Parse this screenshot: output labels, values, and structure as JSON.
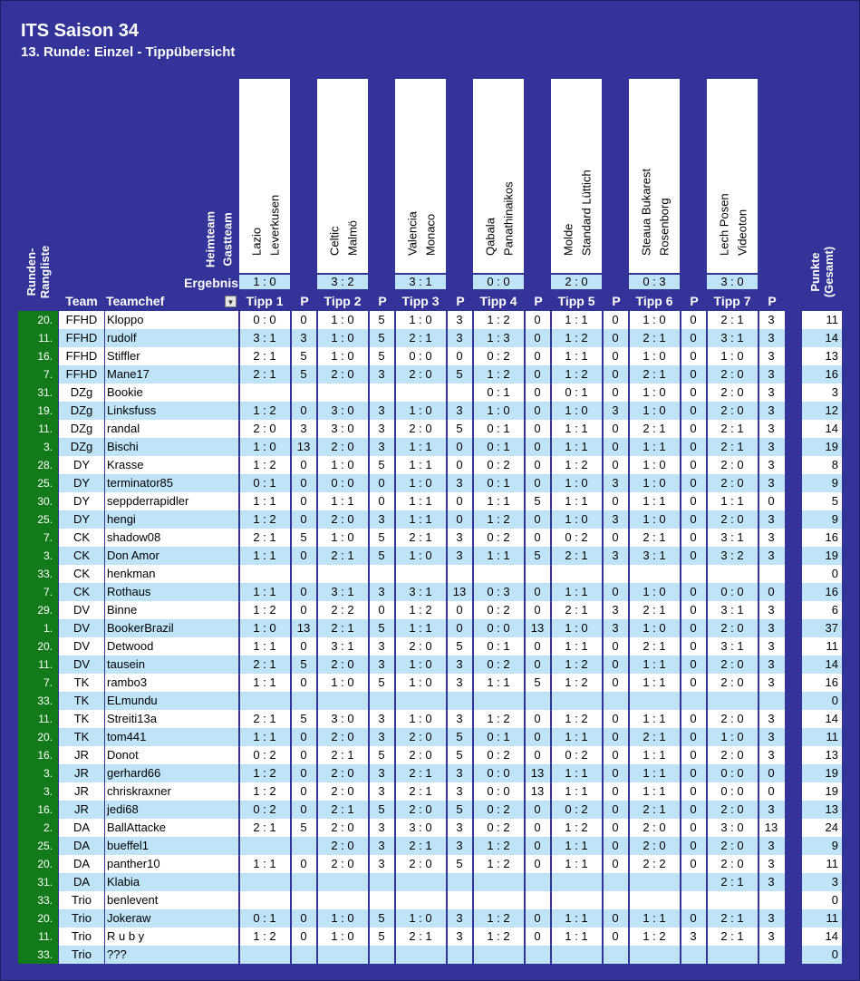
{
  "title": "ITS Saison 34",
  "subtitle": "13. Runde: Einzel - Tippübersicht",
  "labels": {
    "heimteam": "Heimteam",
    "gastteam": "Gastteam",
    "ergebnis": "Ergebnis",
    "runden_rangliste": "Runden-\nRangliste",
    "team": "Team",
    "teamchef": "Teamchef",
    "p": "P",
    "punkte": "Punkte\n(Gesamt)",
    "filter_icon": "▼"
  },
  "matches": [
    {
      "home": "Lazio",
      "away": "Leverkusen",
      "result": "1 : 0",
      "tipp_label": "Tipp 1"
    },
    {
      "home": "Celtic",
      "away": "Malmö",
      "result": "3 : 2",
      "tipp_label": "Tipp 2"
    },
    {
      "home": "Valencia",
      "away": "Monaco",
      "result": "3 : 1",
      "tipp_label": "Tipp 3"
    },
    {
      "home": "Qabala",
      "away": "Panathinaikos",
      "result": "0 : 0",
      "tipp_label": "Tipp 4"
    },
    {
      "home": "Molde",
      "away": "Standard Lüttich",
      "result": "2 : 0",
      "tipp_label": "Tipp 5"
    },
    {
      "home": "Steaua Bukarest",
      "away": "Rosenborg",
      "result": "0 : 3",
      "tipp_label": "Tipp 6"
    },
    {
      "home": "Lech Posen",
      "away": "Videoton",
      "result": "3 : 0",
      "tipp_label": "Tipp 7"
    }
  ],
  "rows": [
    {
      "rank": "20.",
      "team": "FFHD",
      "chef": "Kloppo",
      "tipps": [
        [
          "0 : 0",
          "0"
        ],
        [
          "1 : 0",
          "5"
        ],
        [
          "1 : 0",
          "3"
        ],
        [
          "1 : 2",
          "0"
        ],
        [
          "1 : 1",
          "0"
        ],
        [
          "1 : 0",
          "0"
        ],
        [
          "2 : 1",
          "3"
        ]
      ],
      "total": "11"
    },
    {
      "rank": "11.",
      "team": "FFHD",
      "chef": "rudolf",
      "tipps": [
        [
          "3 : 1",
          "3"
        ],
        [
          "1 : 0",
          "5"
        ],
        [
          "2 : 1",
          "3"
        ],
        [
          "1 : 3",
          "0"
        ],
        [
          "1 : 2",
          "0"
        ],
        [
          "2 : 1",
          "0"
        ],
        [
          "3 : 1",
          "3"
        ]
      ],
      "total": "14"
    },
    {
      "rank": "16.",
      "team": "FFHD",
      "chef": "Stiffler",
      "tipps": [
        [
          "2 : 1",
          "5"
        ],
        [
          "1 : 0",
          "5"
        ],
        [
          "0 : 0",
          "0"
        ],
        [
          "0 : 2",
          "0"
        ],
        [
          "1 : 1",
          "0"
        ],
        [
          "1 : 0",
          "0"
        ],
        [
          "1 : 0",
          "3"
        ]
      ],
      "total": "13"
    },
    {
      "rank": "7.",
      "team": "FFHD",
      "chef": "Mane17",
      "tipps": [
        [
          "2 : 1",
          "5"
        ],
        [
          "2 : 0",
          "3"
        ],
        [
          "2 : 0",
          "5"
        ],
        [
          "1 : 2",
          "0"
        ],
        [
          "1 : 2",
          "0"
        ],
        [
          "2 : 1",
          "0"
        ],
        [
          "2 : 0",
          "3"
        ]
      ],
      "total": "16"
    },
    {
      "rank": "31.",
      "team": "DZg",
      "chef": "Bookie",
      "tipps": [
        [
          "",
          ""
        ],
        [
          "",
          ""
        ],
        [
          "",
          ""
        ],
        [
          "0 : 1",
          "0"
        ],
        [
          "0 : 1",
          "0"
        ],
        [
          "1 : 0",
          "0"
        ],
        [
          "2 : 0",
          "3"
        ]
      ],
      "total": "3"
    },
    {
      "rank": "19.",
      "team": "DZg",
      "chef": "Linksfuss",
      "tipps": [
        [
          "1 : 2",
          "0"
        ],
        [
          "3 : 0",
          "3"
        ],
        [
          "1 : 0",
          "3"
        ],
        [
          "1 : 0",
          "0"
        ],
        [
          "1 : 0",
          "3"
        ],
        [
          "1 : 0",
          "0"
        ],
        [
          "2 : 0",
          "3"
        ]
      ],
      "total": "12"
    },
    {
      "rank": "11.",
      "team": "DZg",
      "chef": "randal",
      "tipps": [
        [
          "2 : 0",
          "3"
        ],
        [
          "3 : 0",
          "3"
        ],
        [
          "2 : 0",
          "5"
        ],
        [
          "0 : 1",
          "0"
        ],
        [
          "1 : 1",
          "0"
        ],
        [
          "2 : 1",
          "0"
        ],
        [
          "2 : 1",
          "3"
        ]
      ],
      "total": "14"
    },
    {
      "rank": "3.",
      "team": "DZg",
      "chef": "Bischi",
      "tipps": [
        [
          "1 : 0",
          "13"
        ],
        [
          "2 : 0",
          "3"
        ],
        [
          "1 : 1",
          "0"
        ],
        [
          "0 : 1",
          "0"
        ],
        [
          "1 : 1",
          "0"
        ],
        [
          "1 : 1",
          "0"
        ],
        [
          "2 : 1",
          "3"
        ]
      ],
      "total": "19"
    },
    {
      "rank": "28.",
      "team": "DY",
      "chef": "Krasse",
      "tipps": [
        [
          "1 : 2",
          "0"
        ],
        [
          "1 : 0",
          "5"
        ],
        [
          "1 : 1",
          "0"
        ],
        [
          "0 : 2",
          "0"
        ],
        [
          "1 : 2",
          "0"
        ],
        [
          "1 : 0",
          "0"
        ],
        [
          "2 : 0",
          "3"
        ]
      ],
      "total": "8"
    },
    {
      "rank": "25.",
      "team": "DY",
      "chef": "terminator85",
      "tipps": [
        [
          "0 : 1",
          "0"
        ],
        [
          "0 : 0",
          "0"
        ],
        [
          "1 : 0",
          "3"
        ],
        [
          "0 : 1",
          "0"
        ],
        [
          "1 : 0",
          "3"
        ],
        [
          "1 : 0",
          "0"
        ],
        [
          "2 : 0",
          "3"
        ]
      ],
      "total": "9"
    },
    {
      "rank": "30.",
      "team": "DY",
      "chef": "seppderrapidler",
      "tipps": [
        [
          "1 : 1",
          "0"
        ],
        [
          "1 : 1",
          "0"
        ],
        [
          "1 : 1",
          "0"
        ],
        [
          "1 : 1",
          "5"
        ],
        [
          "1 : 1",
          "0"
        ],
        [
          "1 : 1",
          "0"
        ],
        [
          "1 : 1",
          "0"
        ]
      ],
      "total": "5"
    },
    {
      "rank": "25.",
      "team": "DY",
      "chef": "hengi",
      "tipps": [
        [
          "1 : 2",
          "0"
        ],
        [
          "2 : 0",
          "3"
        ],
        [
          "1 : 1",
          "0"
        ],
        [
          "1 : 2",
          "0"
        ],
        [
          "1 : 0",
          "3"
        ],
        [
          "1 : 0",
          "0"
        ],
        [
          "2 : 0",
          "3"
        ]
      ],
      "total": "9"
    },
    {
      "rank": "7.",
      "team": "CK",
      "chef": "shadow08",
      "tipps": [
        [
          "2 : 1",
          "5"
        ],
        [
          "1 : 0",
          "5"
        ],
        [
          "2 : 1",
          "3"
        ],
        [
          "0 : 2",
          "0"
        ],
        [
          "0 : 2",
          "0"
        ],
        [
          "2 : 1",
          "0"
        ],
        [
          "3 : 1",
          "3"
        ]
      ],
      "total": "16"
    },
    {
      "rank": "3.",
      "team": "CK",
      "chef": "Don Amor",
      "tipps": [
        [
          "1 : 1",
          "0"
        ],
        [
          "2 : 1",
          "5"
        ],
        [
          "1 : 0",
          "3"
        ],
        [
          "1 : 1",
          "5"
        ],
        [
          "2 : 1",
          "3"
        ],
        [
          "3 : 1",
          "0"
        ],
        [
          "3 : 2",
          "3"
        ]
      ],
      "total": "19"
    },
    {
      "rank": "33.",
      "team": "CK",
      "chef": "henkman",
      "tipps": [
        [
          "",
          ""
        ],
        [
          "",
          ""
        ],
        [
          "",
          ""
        ],
        [
          "",
          ""
        ],
        [
          "",
          ""
        ],
        [
          "",
          ""
        ],
        [
          "",
          ""
        ]
      ],
      "total": "0"
    },
    {
      "rank": "7.",
      "team": "CK",
      "chef": "Rothaus",
      "tipps": [
        [
          "1 : 1",
          "0"
        ],
        [
          "3 : 1",
          "3"
        ],
        [
          "3 : 1",
          "13"
        ],
        [
          "0 : 3",
          "0"
        ],
        [
          "1 : 1",
          "0"
        ],
        [
          "1 : 0",
          "0"
        ],
        [
          "0 : 0",
          "0"
        ]
      ],
      "total": "16"
    },
    {
      "rank": "29.",
      "team": "DV",
      "chef": "Binne",
      "tipps": [
        [
          "1 : 2",
          "0"
        ],
        [
          "2 : 2",
          "0"
        ],
        [
          "1 : 2",
          "0"
        ],
        [
          "0 : 2",
          "0"
        ],
        [
          "2 : 1",
          "3"
        ],
        [
          "2 : 1",
          "0"
        ],
        [
          "3 : 1",
          "3"
        ]
      ],
      "total": "6"
    },
    {
      "rank": "1.",
      "team": "DV",
      "chef": "BookerBrazil",
      "tipps": [
        [
          "1 : 0",
          "13"
        ],
        [
          "2 : 1",
          "5"
        ],
        [
          "1 : 1",
          "0"
        ],
        [
          "0 : 0",
          "13"
        ],
        [
          "1 : 0",
          "3"
        ],
        [
          "1 : 0",
          "0"
        ],
        [
          "2 : 0",
          "3"
        ]
      ],
      "total": "37"
    },
    {
      "rank": "20.",
      "team": "DV",
      "chef": "Detwood",
      "tipps": [
        [
          "1 : 1",
          "0"
        ],
        [
          "3 : 1",
          "3"
        ],
        [
          "2 : 0",
          "5"
        ],
        [
          "0 : 1",
          "0"
        ],
        [
          "1 : 1",
          "0"
        ],
        [
          "2 : 1",
          "0"
        ],
        [
          "3 : 1",
          "3"
        ]
      ],
      "total": "11"
    },
    {
      "rank": "11.",
      "team": "DV",
      "chef": "tausein",
      "tipps": [
        [
          "2 : 1",
          "5"
        ],
        [
          "2 : 0",
          "3"
        ],
        [
          "1 : 0",
          "3"
        ],
        [
          "0 : 2",
          "0"
        ],
        [
          "1 : 2",
          "0"
        ],
        [
          "1 : 1",
          "0"
        ],
        [
          "2 : 0",
          "3"
        ]
      ],
      "total": "14"
    },
    {
      "rank": "7.",
      "team": "TK",
      "chef": "rambo3",
      "tipps": [
        [
          "1 : 1",
          "0"
        ],
        [
          "1 : 0",
          "5"
        ],
        [
          "1 : 0",
          "3"
        ],
        [
          "1 : 1",
          "5"
        ],
        [
          "1 : 2",
          "0"
        ],
        [
          "1 : 1",
          "0"
        ],
        [
          "2 : 0",
          "3"
        ]
      ],
      "total": "16"
    },
    {
      "rank": "33.",
      "team": "TK",
      "chef": "ELmundu",
      "tipps": [
        [
          "",
          ""
        ],
        [
          "",
          ""
        ],
        [
          "",
          ""
        ],
        [
          "",
          ""
        ],
        [
          "",
          ""
        ],
        [
          "",
          ""
        ],
        [
          "",
          ""
        ]
      ],
      "total": "0"
    },
    {
      "rank": "11.",
      "team": "TK",
      "chef": "Streiti13a",
      "tipps": [
        [
          "2 : 1",
          "5"
        ],
        [
          "3 : 0",
          "3"
        ],
        [
          "1 : 0",
          "3"
        ],
        [
          "1 : 2",
          "0"
        ],
        [
          "1 : 2",
          "0"
        ],
        [
          "1 : 1",
          "0"
        ],
        [
          "2 : 0",
          "3"
        ]
      ],
      "total": "14"
    },
    {
      "rank": "20.",
      "team": "TK",
      "chef": "tom441",
      "tipps": [
        [
          "1 : 1",
          "0"
        ],
        [
          "2 : 0",
          "3"
        ],
        [
          "2 : 0",
          "5"
        ],
        [
          "0 : 1",
          "0"
        ],
        [
          "1 : 1",
          "0"
        ],
        [
          "2 : 1",
          "0"
        ],
        [
          "1 : 0",
          "3"
        ]
      ],
      "total": "11"
    },
    {
      "rank": "16.",
      "team": "JR",
      "chef": "Donot",
      "tipps": [
        [
          "0 : 2",
          "0"
        ],
        [
          "2 : 1",
          "5"
        ],
        [
          "2 : 0",
          "5"
        ],
        [
          "0 : 2",
          "0"
        ],
        [
          "0 : 2",
          "0"
        ],
        [
          "1 : 1",
          "0"
        ],
        [
          "2 : 0",
          "3"
        ]
      ],
      "total": "13"
    },
    {
      "rank": "3.",
      "team": "JR",
      "chef": "gerhard66",
      "tipps": [
        [
          "1 : 2",
          "0"
        ],
        [
          "2 : 0",
          "3"
        ],
        [
          "2 : 1",
          "3"
        ],
        [
          "0 : 0",
          "13"
        ],
        [
          "1 : 1",
          "0"
        ],
        [
          "1 : 1",
          "0"
        ],
        [
          "0 : 0",
          "0"
        ]
      ],
      "total": "19"
    },
    {
      "rank": "3.",
      "team": "JR",
      "chef": "chriskraxner",
      "tipps": [
        [
          "1 : 2",
          "0"
        ],
        [
          "2 : 0",
          "3"
        ],
        [
          "2 : 1",
          "3"
        ],
        [
          "0 : 0",
          "13"
        ],
        [
          "1 : 1",
          "0"
        ],
        [
          "1 : 1",
          "0"
        ],
        [
          "0 : 0",
          "0"
        ]
      ],
      "total": "19"
    },
    {
      "rank": "16.",
      "team": "JR",
      "chef": "jedi68",
      "tipps": [
        [
          "0 : 2",
          "0"
        ],
        [
          "2 : 1",
          "5"
        ],
        [
          "2 : 0",
          "5"
        ],
        [
          "0 : 2",
          "0"
        ],
        [
          "0 : 2",
          "0"
        ],
        [
          "2 : 1",
          "0"
        ],
        [
          "2 : 0",
          "3"
        ]
      ],
      "total": "13"
    },
    {
      "rank": "2.",
      "team": "DA",
      "chef": "BallAttacke",
      "tipps": [
        [
          "2 : 1",
          "5"
        ],
        [
          "2 : 0",
          "3"
        ],
        [
          "3 : 0",
          "3"
        ],
        [
          "0 : 2",
          "0"
        ],
        [
          "1 : 2",
          "0"
        ],
        [
          "2 : 0",
          "0"
        ],
        [
          "3 : 0",
          "13"
        ]
      ],
      "total": "24"
    },
    {
      "rank": "25.",
      "team": "DA",
      "chef": "bueffel1",
      "tipps": [
        [
          "",
          ""
        ],
        [
          "2 : 0",
          "3"
        ],
        [
          "2 : 1",
          "3"
        ],
        [
          "1 : 2",
          "0"
        ],
        [
          "1 : 1",
          "0"
        ],
        [
          "2 : 0",
          "0"
        ],
        [
          "2 : 0",
          "3"
        ]
      ],
      "total": "9"
    },
    {
      "rank": "20.",
      "team": "DA",
      "chef": "panther10",
      "tipps": [
        [
          "1 : 1",
          "0"
        ],
        [
          "2 : 0",
          "3"
        ],
        [
          "2 : 0",
          "5"
        ],
        [
          "1 : 2",
          "0"
        ],
        [
          "1 : 1",
          "0"
        ],
        [
          "2 : 2",
          "0"
        ],
        [
          "2 : 0",
          "3"
        ]
      ],
      "total": "11"
    },
    {
      "rank": "31.",
      "team": "DA",
      "chef": "Klabia",
      "tipps": [
        [
          "",
          ""
        ],
        [
          "",
          ""
        ],
        [
          "",
          ""
        ],
        [
          "",
          ""
        ],
        [
          "",
          ""
        ],
        [
          "",
          ""
        ],
        [
          "2 : 1",
          "3"
        ]
      ],
      "total": "3"
    },
    {
      "rank": "33.",
      "team": "Trio",
      "chef": "benlevent",
      "tipps": [
        [
          "",
          ""
        ],
        [
          "",
          ""
        ],
        [
          "",
          ""
        ],
        [
          "",
          ""
        ],
        [
          "",
          ""
        ],
        [
          "",
          ""
        ],
        [
          "",
          ""
        ]
      ],
      "total": "0"
    },
    {
      "rank": "20.",
      "team": "Trio",
      "chef": "Jokeraw",
      "tipps": [
        [
          "0 : 1",
          "0"
        ],
        [
          "1 : 0",
          "5"
        ],
        [
          "1 : 0",
          "3"
        ],
        [
          "1 : 2",
          "0"
        ],
        [
          "1 : 1",
          "0"
        ],
        [
          "1 : 1",
          "0"
        ],
        [
          "2 : 1",
          "3"
        ]
      ],
      "total": "11"
    },
    {
      "rank": "11.",
      "team": "Trio",
      "chef": "R u b y",
      "tipps": [
        [
          "1 : 2",
          "0"
        ],
        [
          "1 : 0",
          "5"
        ],
        [
          "2 : 1",
          "3"
        ],
        [
          "1 : 2",
          "0"
        ],
        [
          "1 : 1",
          "0"
        ],
        [
          "1 : 2",
          "3"
        ],
        [
          "2 : 1",
          "3"
        ]
      ],
      "total": "14"
    },
    {
      "rank": "33.",
      "team": "Trio",
      "chef": "???",
      "tipps": [
        [
          "",
          ""
        ],
        [
          "",
          ""
        ],
        [
          "",
          ""
        ],
        [
          "",
          ""
        ],
        [
          "",
          ""
        ],
        [
          "",
          ""
        ],
        [
          "",
          ""
        ]
      ],
      "total": "0"
    }
  ],
  "colors": {
    "background": "#333399",
    "row_alt": "#bfe3f7",
    "rank_bar": "#137a1a"
  }
}
